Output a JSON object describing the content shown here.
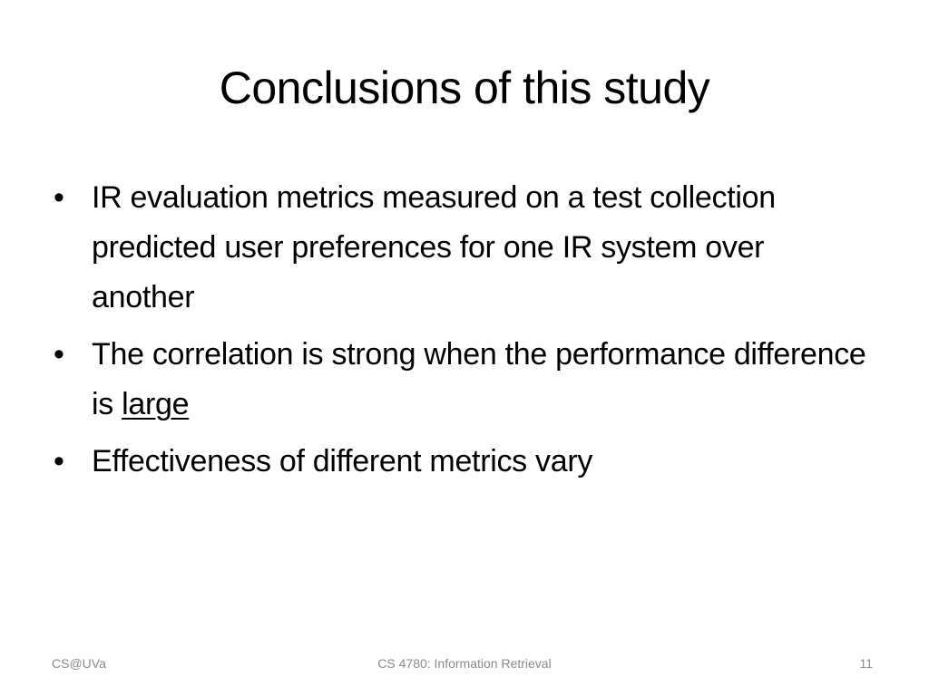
{
  "slide": {
    "title": "Conclusions of this study",
    "bullet_glyph": "•",
    "bullets": [
      {
        "text": "IR evaluation metrics measured on a test collection predicted user preferences for one IR system over another"
      },
      {
        "text_before": "The correlation is strong when the performance difference is ",
        "underlined": "large"
      },
      {
        "text": "Effectiveness of different metrics vary"
      }
    ]
  },
  "footer": {
    "left": "CS@UVa",
    "center": "CS 4780: Information Retrieval",
    "page_number": "11"
  }
}
